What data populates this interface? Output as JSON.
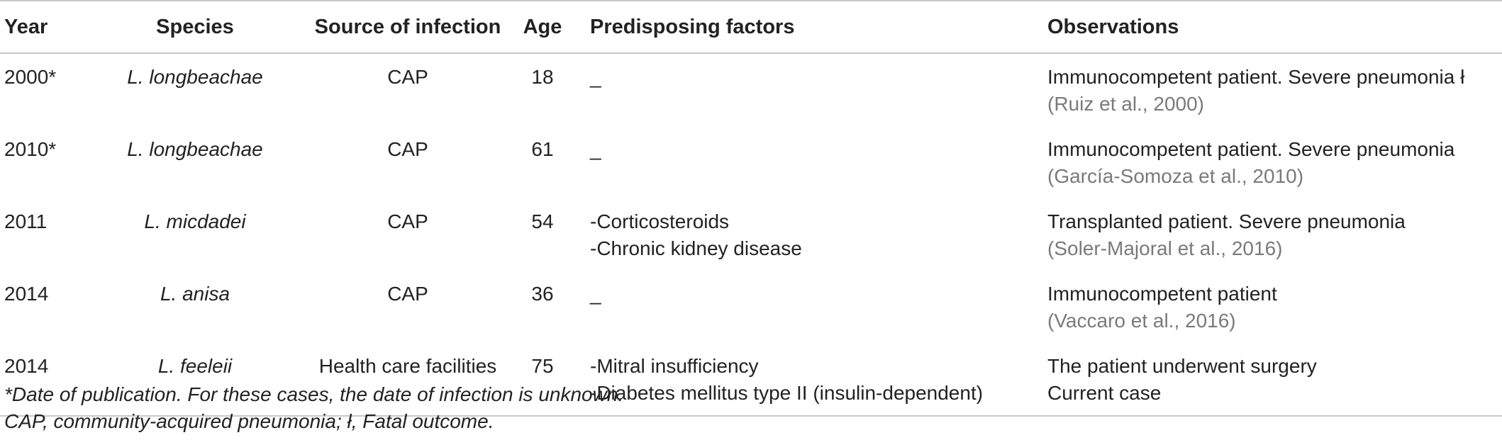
{
  "headers": {
    "year": "Year",
    "species": "Species",
    "source": "Source of infection",
    "age": "Age",
    "predisposing": "Predisposing factors",
    "observations": "Observations"
  },
  "rows": [
    {
      "year": "2000*",
      "species": "L. longbeachae",
      "source": "CAP",
      "age": "18",
      "predisposing": [
        "_"
      ],
      "observation": "Immunocompetent patient. Severe pneumonia ł",
      "reference": "(Ruiz et al., 2000)"
    },
    {
      "year": "2010*",
      "species": "L. longbeachae",
      "source": "CAP",
      "age": "61",
      "predisposing": [
        "_"
      ],
      "observation": "Immunocompetent patient. Severe pneumonia",
      "reference": "(García-Somoza et al., 2010)"
    },
    {
      "year": "2011",
      "species": "L. micdadei",
      "source": "CAP",
      "age": "54",
      "predisposing": [
        "-Corticosteroids",
        "-Chronic kidney disease"
      ],
      "observation": "Transplanted patient. Severe pneumonia",
      "reference": "(Soler-Majoral et al., 2016)"
    },
    {
      "year": "2014",
      "species": "L. anisa",
      "source": "CAP",
      "age": "36",
      "predisposing": [
        "_"
      ],
      "observation": "Immunocompetent patient",
      "reference": "(Vaccaro et al., 2016)"
    },
    {
      "year": "2014",
      "species": "L. feeleii",
      "source": "Health care facilities",
      "age": "75",
      "predisposing": [
        "-Mitral insufficiency",
        "-Diabetes mellitus type II (insulin-dependent)"
      ],
      "observation": "The patient underwent surgery",
      "reference": "Current case"
    }
  ],
  "footnotes": {
    "line1": "*Date of publication. For these cases, the date of infection is unknown.",
    "line2": "CAP, community-acquired pneumonia; ł, Fatal outcome."
  },
  "colors": {
    "text": "#222222",
    "reference": "#7a7a7a",
    "rule": "#c9c9c9"
  }
}
